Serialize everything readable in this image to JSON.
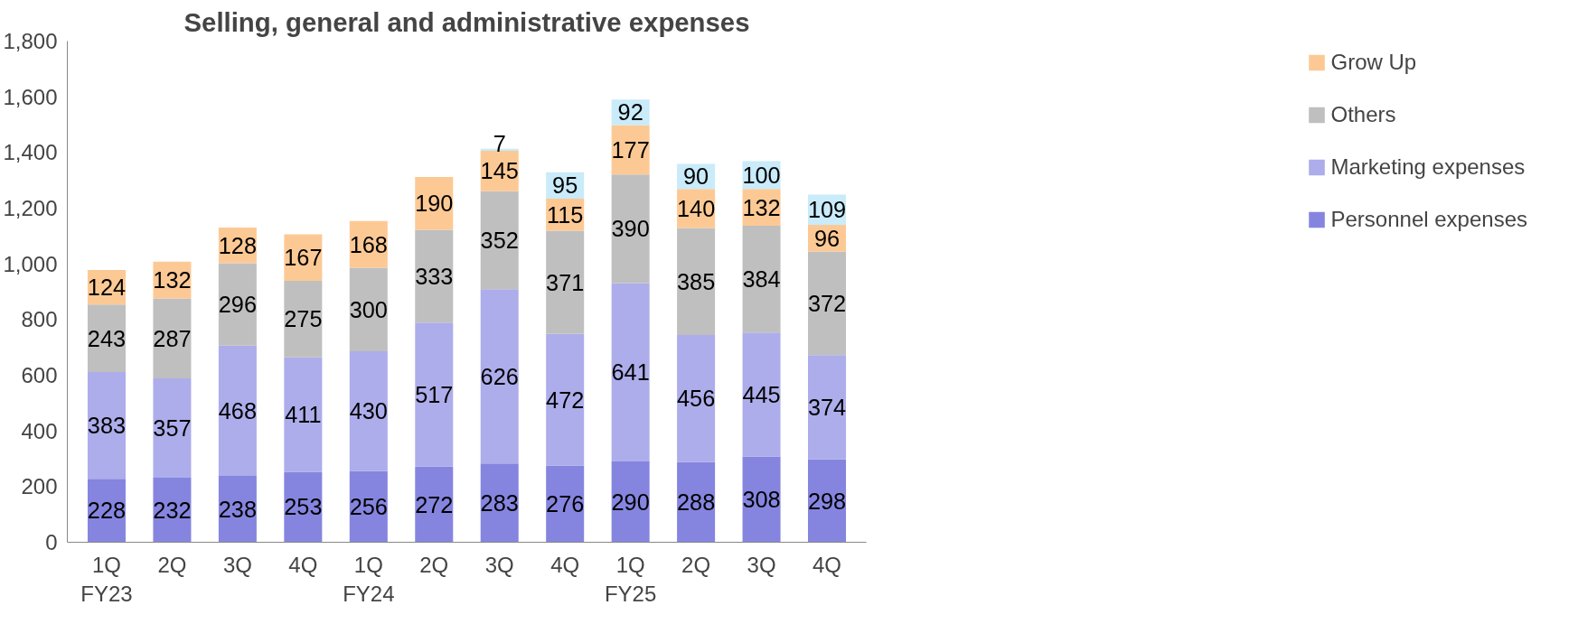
{
  "chart_data": {
    "type": "bar",
    "stacked": true,
    "title": "Selling, general and administrative expenses",
    "categories": [
      "1Q\nFY23",
      "2Q",
      "3Q",
      "4Q",
      "1Q\nFY24",
      "2Q",
      "3Q",
      "4Q",
      "1Q\nFY25",
      "2Q",
      "3Q",
      "4Q"
    ],
    "series": [
      {
        "name": "Personnel expenses",
        "color": "#8585e0",
        "values": [
          228,
          232,
          238,
          253,
          256,
          272,
          283,
          276,
          290,
          288,
          308,
          298
        ]
      },
      {
        "name": "Marketing expenses",
        "color": "#adadeb",
        "values": [
          383,
          357,
          468,
          411,
          430,
          517,
          626,
          472,
          641,
          456,
          445,
          374
        ]
      },
      {
        "name": "Others",
        "color": "#bfbfbf",
        "values": [
          243,
          287,
          296,
          275,
          300,
          333,
          352,
          371,
          390,
          385,
          384,
          372
        ]
      },
      {
        "name": "Grow Up",
        "color": "#fcc995",
        "values": [
          124,
          132,
          128,
          167,
          168,
          190,
          145,
          115,
          177,
          140,
          132,
          96
        ]
      },
      {
        "color": "#c9ebfa",
        "values": [
          null,
          null,
          null,
          null,
          null,
          null,
          7,
          95,
          92,
          90,
          100,
          109
        ]
      }
    ],
    "ylim": [
      0,
      1800
    ],
    "yticks": [
      0,
      200,
      400,
      600,
      800,
      {
        "value": 1000,
        "label": "1,000"
      },
      {
        "value": 1200,
        "label": "1,200"
      },
      {
        "value": 1400,
        "label": "1,400"
      },
      {
        "value": 1600,
        "label": "1,600"
      },
      {
        "value": 1800,
        "label": "1,800"
      }
    ],
    "data_labels": true,
    "grid": false,
    "legend": "right"
  }
}
